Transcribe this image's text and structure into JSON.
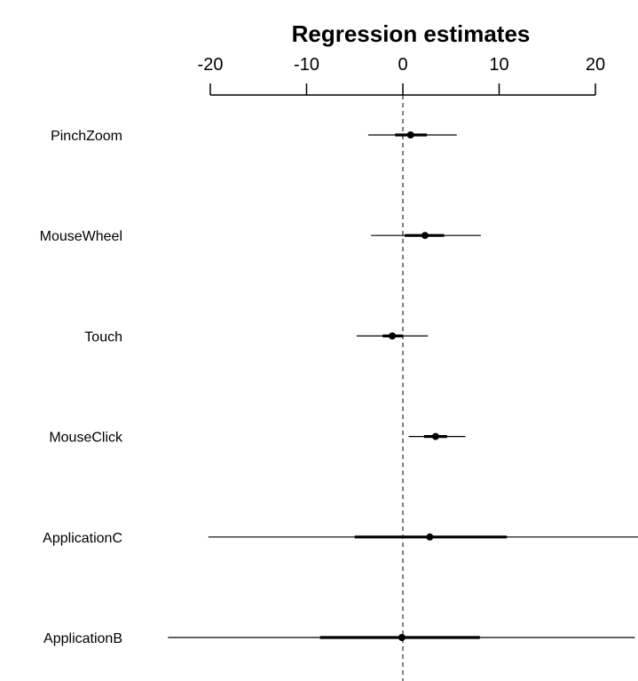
{
  "chart_data": {
    "type": "forest",
    "title": "Regression estimates",
    "xlim": [
      -20,
      20
    ],
    "ticks": [
      -20,
      -10,
      0,
      10,
      20
    ],
    "tick_labels": [
      "-20",
      "-10",
      "0",
      "10",
      "20"
    ],
    "reference_line": 0,
    "grid": false,
    "rows": [
      {
        "label": "PinchZoom",
        "estimate": 0.8,
        "inner": [
          -0.8,
          2.5
        ],
        "outer": [
          -3.6,
          5.6
        ]
      },
      {
        "label": "MouseWheel",
        "estimate": 2.3,
        "inner": [
          0.2,
          4.3
        ],
        "outer": [
          -3.3,
          8.1
        ]
      },
      {
        "label": "Touch",
        "estimate": -1.1,
        "inner": [
          -2.1,
          0.0
        ],
        "outer": [
          -4.8,
          2.6
        ]
      },
      {
        "label": "MouseClick",
        "estimate": 3.4,
        "inner": [
          2.2,
          4.6
        ],
        "outer": [
          0.6,
          6.5
        ]
      },
      {
        "label": "ApplicationC",
        "estimate": 2.8,
        "inner": [
          -5.0,
          10.8
        ],
        "outer": [
          -20.2,
          24.5
        ]
      },
      {
        "label": "ApplicationB",
        "estimate": -0.1,
        "inner": [
          -8.6,
          8.0
        ],
        "outer": [
          -24.4,
          24.1
        ]
      }
    ]
  }
}
